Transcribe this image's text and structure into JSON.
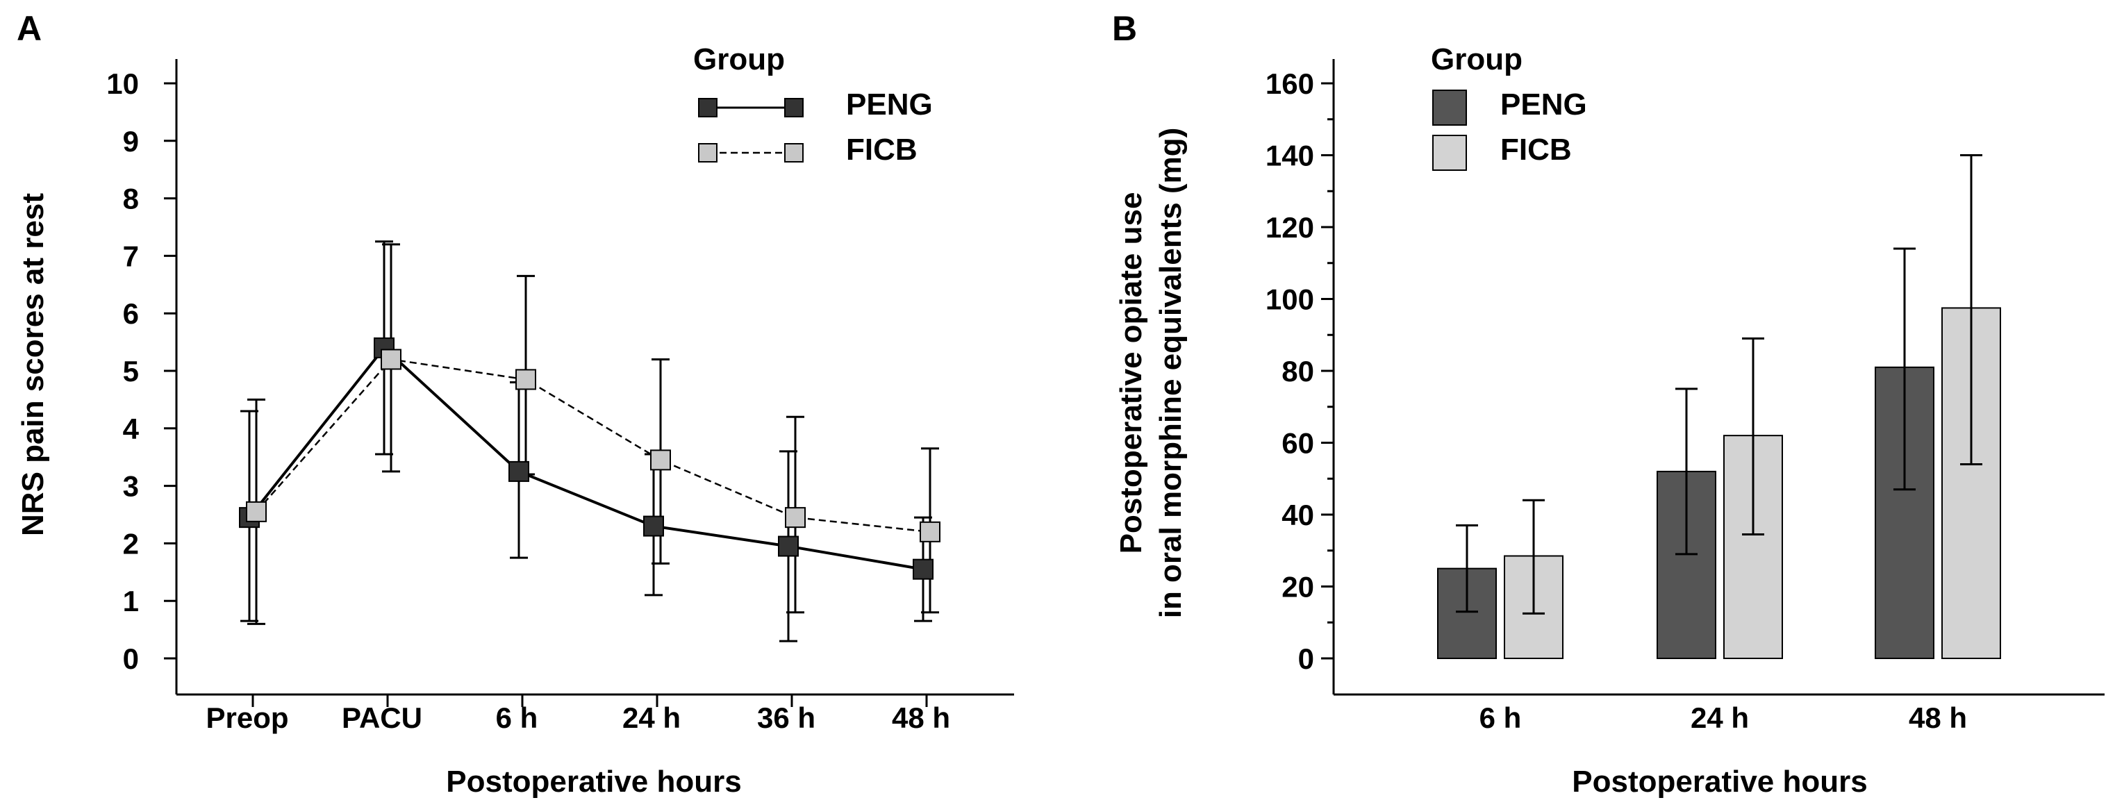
{
  "panels": [
    {
      "letter": "A",
      "chart_data": {
        "type": "line",
        "categories": [
          "Preop",
          "PACU",
          "6 h",
          "24 h",
          "36 h",
          "48 h"
        ],
        "xlabel": "Postoperative hours",
        "ylabel": "NRS pain scores at rest",
        "ylim": [
          0,
          10
        ],
        "yticks": [
          0,
          1,
          2,
          3,
          4,
          5,
          6,
          7,
          8,
          9,
          10
        ],
        "legend_title": "Group",
        "legend_position": "top-right",
        "series": [
          {
            "name": "PENG",
            "line_style": "solid",
            "color": "#333333",
            "values": [
              2.45,
              5.4,
              3.25,
              2.3,
              1.95,
              1.55
            ],
            "error_low": [
              0.65,
              3.55,
              1.75,
              1.1,
              0.3,
              0.65
            ],
            "error_high": [
              4.3,
              7.25,
              4.8,
              3.55,
              3.6,
              2.45
            ]
          },
          {
            "name": "FICB",
            "line_style": "dashed",
            "color": "#c8c8c8",
            "values": [
              2.55,
              5.2,
              4.85,
              3.45,
              2.45,
              2.2
            ],
            "error_low": [
              0.6,
              3.25,
              3.2,
              1.65,
              0.8,
              0.8
            ],
            "error_high": [
              4.5,
              7.2,
              6.65,
              5.2,
              4.2,
              3.65
            ]
          }
        ]
      }
    },
    {
      "letter": "B",
      "chart_data": {
        "type": "bar",
        "categories": [
          "6 h",
          "24 h",
          "48 h"
        ],
        "xlabel": "Postoperative hours",
        "ylabel": [
          "Postoperative opiate use",
          "in oral morphine equivalents (mg)"
        ],
        "ylim": [
          0,
          160
        ],
        "yticks": [
          0,
          20,
          40,
          60,
          80,
          100,
          120,
          140,
          160
        ],
        "legend_title": "Group",
        "legend_position": "top-left",
        "series": [
          {
            "name": "PENG",
            "color": "#555555",
            "values": [
              25,
              52,
              81
            ],
            "error_low": [
              13,
              29,
              47
            ],
            "error_high": [
              37,
              75,
              114
            ]
          },
          {
            "name": "FICB",
            "color": "#d3d3d3",
            "values": [
              28.5,
              62,
              97.5
            ],
            "error_low": [
              12.5,
              34.5,
              54
            ],
            "error_high": [
              44,
              89,
              140
            ]
          }
        ]
      }
    }
  ]
}
